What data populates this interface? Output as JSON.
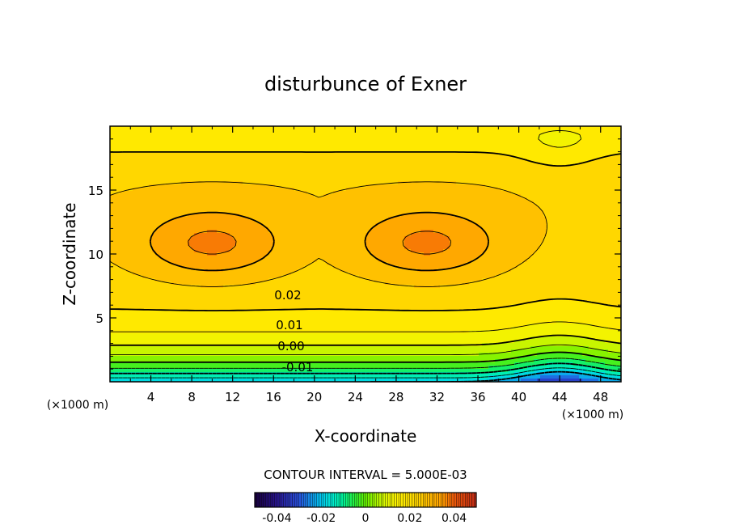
{
  "chart_data": {
    "type": "heatmap",
    "subtype": "filled contour",
    "title": "disturbunce of Exner",
    "xlabel": "X-coordinate",
    "ylabel": "Z-coordinate",
    "x_unit": "(×1000 m)",
    "z_unit": "(×1000 m)",
    "xlim": [
      0,
      50
    ],
    "ylim": [
      0,
      20
    ],
    "x_ticks": [
      "4",
      "8",
      "12",
      "16",
      "20",
      "24",
      "28",
      "32",
      "36",
      "40",
      "44",
      "48"
    ],
    "y_ticks": [
      "5",
      "10",
      "15"
    ],
    "contour_interval_text": "CONTOUR INTERVAL = 5.000E-03",
    "contour_labels": [
      "0.02",
      "0.01",
      "0.00",
      "-0.01"
    ],
    "colorbar": {
      "range": [
        -0.05,
        0.05
      ],
      "tick_labels": [
        "-0.04",
        "-0.02",
        "0",
        "0.02",
        "0.04"
      ],
      "tick_values": [
        -0.04,
        -0.02,
        0,
        0.02,
        0.04
      ]
    },
    "field_description_values": {
      "maxima": [
        {
          "x": 10,
          "z": 10.8,
          "value": 0.037
        },
        {
          "x": 31,
          "z": 10.8,
          "value": 0.037
        }
      ],
      "minimum_near_surface": {
        "x": 44,
        "z": 0.5,
        "value": -0.018
      }
    },
    "colors": {
      "strong_negative": "#2020a0",
      "zero": "#40e000",
      "positive_low": "#ffe000",
      "positive_high": "#ff9000"
    }
  }
}
